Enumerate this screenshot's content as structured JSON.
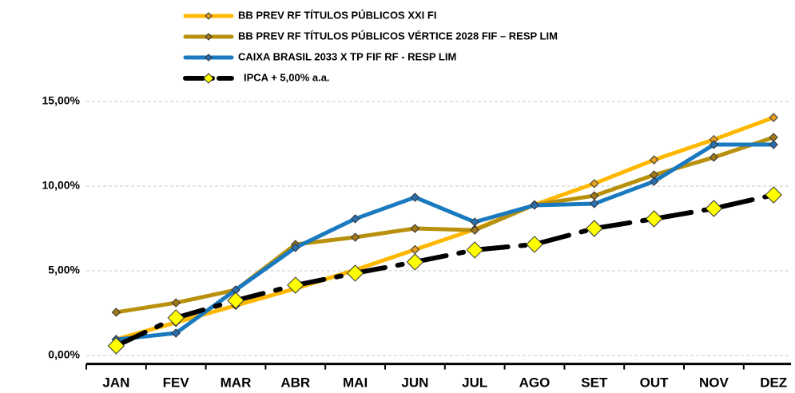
{
  "chart_data": {
    "type": "line",
    "categories": [
      "JAN",
      "FEV",
      "MAR",
      "ABR",
      "MAI",
      "JUN",
      "JUL",
      "AGO",
      "SET",
      "OUT",
      "NOV",
      "DEZ"
    ],
    "series": [
      {
        "name": "BB PREV RF TÍTULOS PÚBLICOS XXI FI",
        "color": "#ffb800",
        "marker": "#e8a020",
        "values": [
          0.95,
          1.95,
          2.95,
          3.95,
          5.05,
          6.25,
          7.45,
          8.9,
          10.15,
          11.55,
          12.75,
          14.05
        ]
      },
      {
        "name": "BB PREV RF TÍTULOS PÚBLICOS VÉRTICE 2028 FIF – RESP LIM",
        "color": "#b8900c",
        "marker": "#a07818",
        "values": [
          2.55,
          3.11,
          3.87,
          6.56,
          6.98,
          7.5,
          7.4,
          8.9,
          9.43,
          10.66,
          11.7,
          12.88
        ]
      },
      {
        "name": "CAIXA BRASIL 2033 X TP FIF RF - RESP LIM",
        "color": "#1a7abf",
        "marker": "#2a6fb0",
        "values": [
          0.94,
          1.32,
          3.87,
          6.37,
          8.07,
          9.34,
          7.88,
          8.87,
          8.96,
          10.28,
          12.45,
          12.45
        ]
      },
      {
        "name": "IPCA + 5,00% a.a.",
        "color": "#000000",
        "marker": "#ffff00",
        "dash": true,
        "values": [
          0.57,
          2.22,
          3.25,
          4.15,
          4.86,
          5.52,
          6.23,
          6.56,
          7.5,
          8.07,
          8.68,
          9.48
        ]
      }
    ],
    "ylim": [
      -0.5,
      15.5
    ],
    "yticks": [
      {
        "value": 0,
        "label": "0,00%"
      },
      {
        "value": 5,
        "label": "5,00%"
      },
      {
        "value": 10,
        "label": "10,00%"
      },
      {
        "value": 15,
        "label": "15,00%"
      }
    ],
    "grid": true
  }
}
